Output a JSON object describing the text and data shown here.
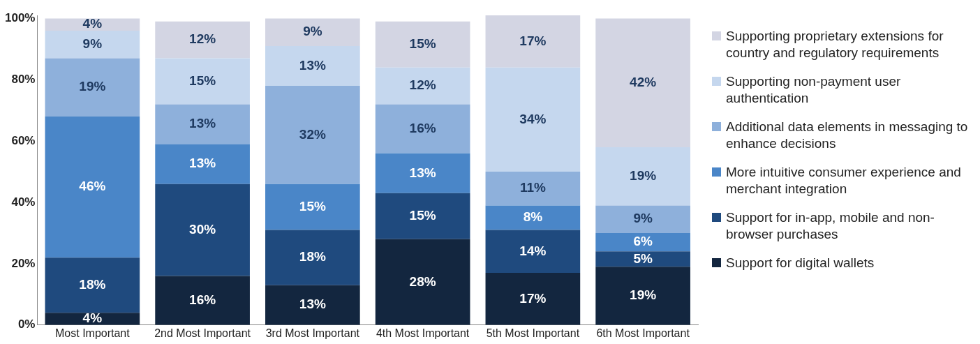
{
  "chart_data": {
    "type": "bar",
    "stacked": true,
    "legend": "right",
    "grid": false,
    "categories": [
      "Most Important",
      "2nd Most Important",
      "3rd Most Important",
      "4th Most Important",
      "5th Most Important",
      "6th Most Important"
    ],
    "ylim": [
      0,
      101
    ],
    "yticks": [
      {
        "value": 0,
        "label": "0%"
      },
      {
        "value": 20,
        "label": "20%"
      },
      {
        "value": 40,
        "label": "40%"
      },
      {
        "value": 60,
        "label": "60%"
      },
      {
        "value": 80,
        "label": "80%"
      },
      {
        "value": 100,
        "label": "100%"
      }
    ],
    "series": [
      {
        "name": "Support for digital wallets",
        "color": "#13263f",
        "values": [
          4,
          16,
          13,
          28,
          17,
          19
        ],
        "value_labels": [
          "4%",
          "16%",
          "13%",
          "28%",
          "17%",
          "19%"
        ]
      },
      {
        "name": "Support for in-app, mobile and non-browser purchases",
        "color": "#1f4a7e",
        "values": [
          18,
          30,
          18,
          15,
          14,
          5
        ],
        "value_labels": [
          "18%",
          "30%",
          "18%",
          "15%",
          "14%",
          "5%"
        ]
      },
      {
        "name": "More intuitive consumer experience and merchant integration",
        "color": "#4a86c8",
        "values": [
          46,
          13,
          15,
          13,
          8,
          6
        ],
        "value_labels": [
          "46%",
          "13%",
          "15%",
          "13%",
          "8%",
          "6%"
        ]
      },
      {
        "name": "Additional data elements in messaging to enhance decisions",
        "color": "#8eb0db",
        "values": [
          19,
          13,
          32,
          16,
          11,
          9
        ],
        "value_labels": [
          "19%",
          "13%",
          "32%",
          "16%",
          "11%",
          "9%"
        ]
      },
      {
        "name": "Supporting non-payment user authentication",
        "color": "#c5d7ee",
        "values": [
          9,
          15,
          13,
          12,
          34,
          19
        ],
        "value_labels": [
          "9%",
          "15%",
          "13%",
          "12%",
          "34%",
          "19%"
        ]
      },
      {
        "name": "Supporting proprietary extensions for country and regulatory requirements",
        "color": "#d3d5e3",
        "values": [
          4,
          12,
          9,
          15,
          17,
          42
        ],
        "value_labels": [
          "4%",
          "12%",
          "9%",
          "15%",
          "17%",
          "42%"
        ]
      }
    ]
  }
}
